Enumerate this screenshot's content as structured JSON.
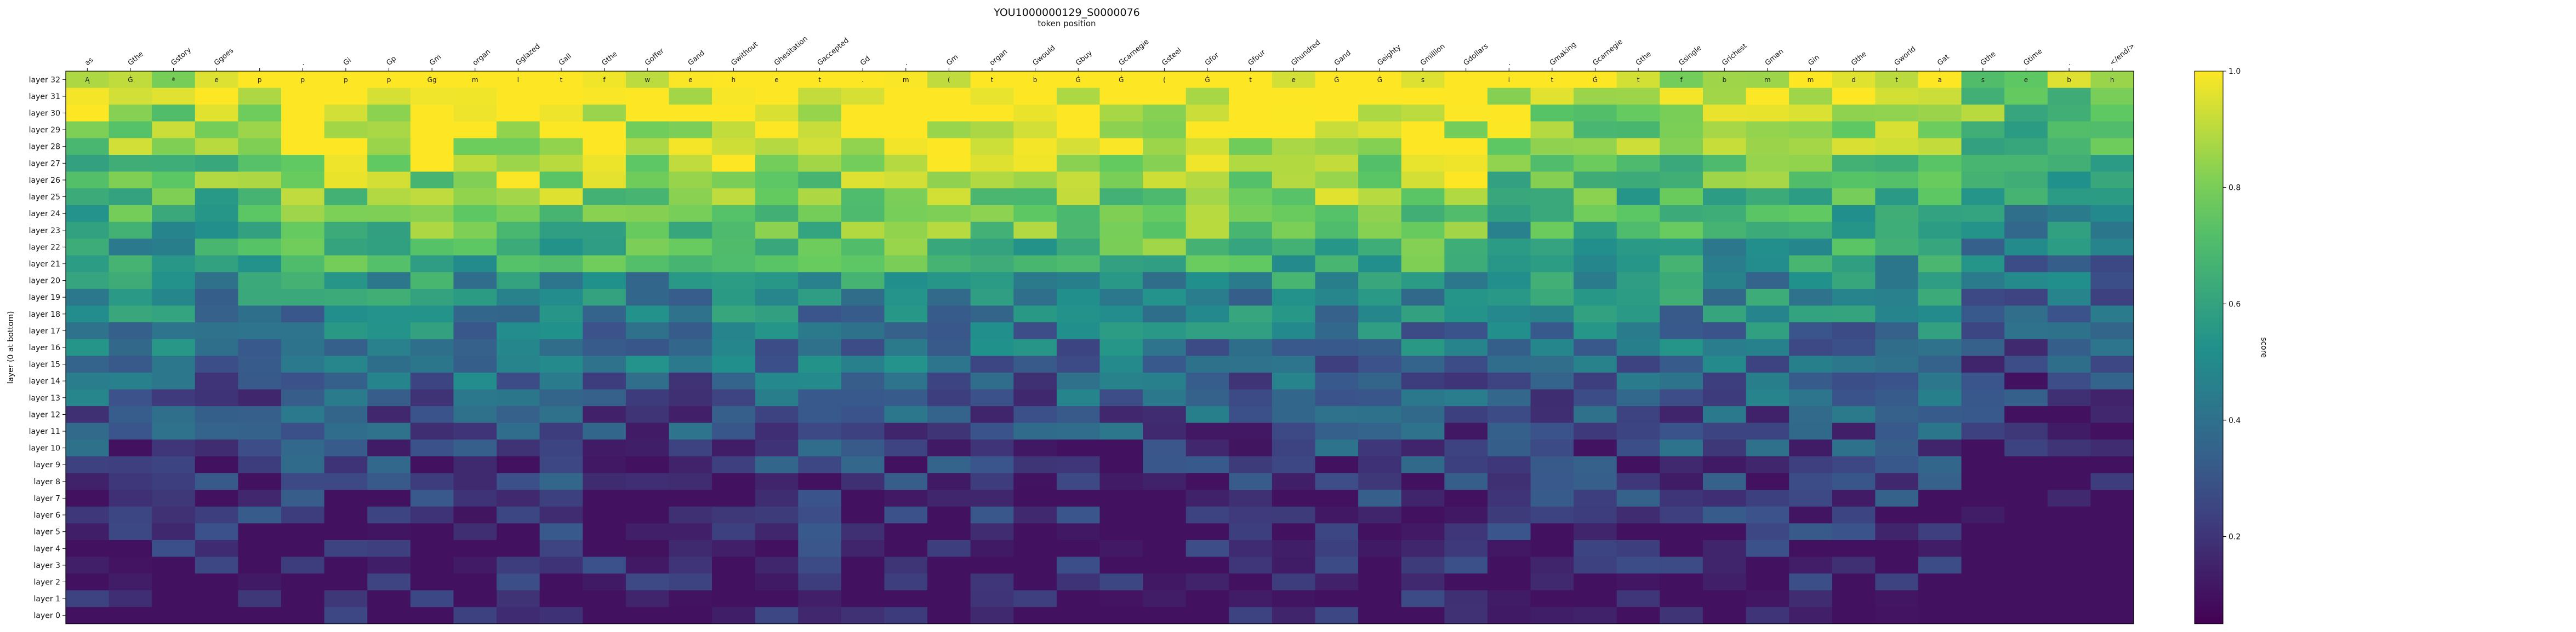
{
  "chart_data": {
    "type": "heatmap",
    "title": "YOU1000000129_S0000076",
    "subtitle": "token position",
    "ylabel": "layer (0 at bottom)",
    "colorbar_label": "score",
    "colorbar_ticks": [
      "0.2",
      "0.4",
      "0.6",
      "0.8",
      "1.0"
    ],
    "colorscale": "viridis",
    "zlim": [
      0.05,
      1.0
    ],
    "x_tokens": [
      "as",
      "Gthe",
      "Gstory",
      "Ggoes",
      "",
      ".",
      "Gi",
      "Gp",
      "Gm",
      "organ",
      "Gglazed",
      "Gall",
      "Gthe",
      "Goffer",
      "Gand",
      "Gwithout",
      "Ghesitation",
      "Gaccepted",
      "Gd",
      ".",
      "Gm",
      "organ",
      "Gwould",
      "Gbuy",
      "Gcarnegie",
      "Gsteel",
      "Gfor",
      "Gfour",
      "Ghundred",
      "Gand",
      "Geighty",
      "Gmillion",
      "Gdollars",
      ".",
      "Gmaking",
      "Gcarnegie",
      "Gthe",
      "Gsingle",
      "Grichest",
      "Gman",
      "Gin",
      "Gthe",
      "Gworld",
      "Gat",
      "Gthe",
      "Gtime",
      ".",
      "</end/>"
    ],
    "y_layers": [
      "layer 32",
      "layer 31",
      "layer 30",
      "layer 29",
      "layer 28",
      "layer 27",
      "layer 26",
      "layer 25",
      "layer 24",
      "layer 23",
      "layer 22",
      "layer 21",
      "layer 20",
      "layer 19",
      "layer 18",
      "layer 17",
      "layer 16",
      "layer 15",
      "layer 14",
      "layer 13",
      "layer 12",
      "layer 11",
      "layer 10",
      "layer 9",
      "layer 8",
      "layer 7",
      "layer 6",
      "layer 5",
      "layer 4",
      "layer 3",
      "layer 2",
      "layer 1",
      "layer 0"
    ],
    "values_summary": "Scores increase from bottom (~0.05-0.2 at layers 0-8) to top (~0.5-1.0 at layers 19-32); bright yellow band concentrated in layers 21-32 across middle token columns.",
    "cell_labels_row_layer32": [
      "Ą",
      "Ġ",
      "ª",
      "e",
      "p",
      "p",
      "p",
      "p",
      "Ġg",
      "m",
      "l",
      "t",
      "f",
      "w",
      "e",
      "h",
      "e",
      "t",
      ".",
      "m",
      "(",
      "t",
      "b",
      "Ġ",
      "Ġ",
      "(",
      "Ġ",
      "t",
      "e",
      "Ġ",
      "Ġ",
      "s",
      "",
      "i",
      "t",
      "Ġ",
      "t",
      "f",
      "b",
      "m",
      "m",
      "d",
      "t",
      "a",
      "s",
      "e",
      "b",
      "h"
    ]
  }
}
